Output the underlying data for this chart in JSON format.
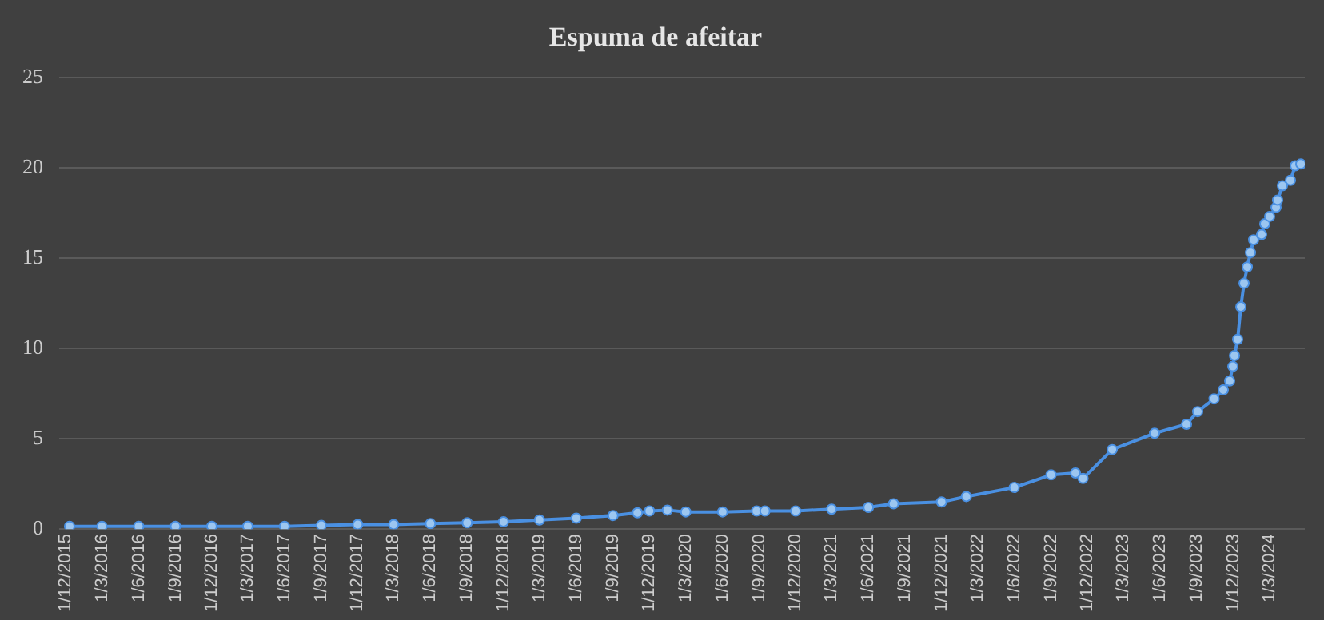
{
  "chart_data": {
    "type": "line",
    "title": "Espuma de afeitar",
    "x": [
      "2015-12-11",
      "2016-03-01",
      "2016-06-01",
      "2016-09-01",
      "2016-12-01",
      "2017-03-01",
      "2017-06-01",
      "2017-09-01",
      "2017-12-01",
      "2018-03-01",
      "2018-06-01",
      "2018-09-01",
      "2018-12-01",
      "2019-03-01",
      "2019-06-01",
      "2019-09-01",
      "2019-11-01",
      "2019-12-01",
      "2020-01-15",
      "2020-03-01",
      "2020-06-01",
      "2020-08-25",
      "2020-09-05",
      "2020-09-15",
      "2020-12-01",
      "2021-03-01",
      "2021-06-01",
      "2021-08-03",
      "2021-12-01",
      "2022-02-01",
      "2022-06-01",
      "2022-09-01",
      "2022-11-01",
      "2022-11-20",
      "2023-02-01",
      "2023-05-18",
      "2023-08-06",
      "2023-09-03",
      "2023-10-14",
      "2023-11-06",
      "2023-11-22",
      "2023-11-30",
      "2023-12-04",
      "2023-12-12",
      "2023-12-20",
      "2023-12-28",
      "2024-01-05",
      "2024-01-13",
      "2024-01-21",
      "2024-02-10",
      "2024-02-18",
      "2024-03-01",
      "2024-03-17",
      "2024-03-21",
      "2024-04-02",
      "2024-04-22",
      "2024-05-04",
      "2024-05-18"
    ],
    "series": [
      {
        "color": "#4a90e2",
        "values": [
          0.15,
          0.15,
          0.15,
          0.15,
          0.15,
          0.15,
          0.15,
          0.2,
          0.25,
          0.25,
          0.3,
          0.35,
          0.4,
          0.5,
          0.6,
          0.75,
          0.9,
          1.0,
          1.05,
          0.95,
          0.95,
          1.0,
          null,
          1.0,
          1.0,
          1.1,
          1.2,
          1.4,
          1.5,
          1.8,
          2.3,
          3.0,
          3.1,
          2.8,
          4.4,
          5.3,
          5.8,
          6.5,
          7.2,
          7.7,
          8.2,
          9.0,
          9.6,
          10.5,
          12.3,
          13.6,
          14.5,
          15.3,
          16.0,
          16.3,
          16.9,
          17.3,
          17.8,
          18.2,
          19.0,
          19.3,
          20.1,
          20.2
        ]
      }
    ],
    "xlim": [
      "2015-11-15",
      "2024-05-28"
    ],
    "xticks": [
      {
        "value": "2015-12-01",
        "label": "1/12/2015"
      },
      {
        "value": "2016-03-01",
        "label": "1/3/2016"
      },
      {
        "value": "2016-06-01",
        "label": "1/6/2016"
      },
      {
        "value": "2016-09-01",
        "label": "1/9/2016"
      },
      {
        "value": "2016-12-01",
        "label": "1/12/2016"
      },
      {
        "value": "2017-03-01",
        "label": "1/3/2017"
      },
      {
        "value": "2017-06-01",
        "label": "1/6/2017"
      },
      {
        "value": "2017-09-01",
        "label": "1/9/2017"
      },
      {
        "value": "2017-12-01",
        "label": "1/12/2017"
      },
      {
        "value": "2018-03-01",
        "label": "1/3/2018"
      },
      {
        "value": "2018-06-01",
        "label": "1/6/2018"
      },
      {
        "value": "2018-09-01",
        "label": "1/9/2018"
      },
      {
        "value": "2018-12-01",
        "label": "1/12/2018"
      },
      {
        "value": "2019-03-01",
        "label": "1/3/2019"
      },
      {
        "value": "2019-06-01",
        "label": "1/6/2019"
      },
      {
        "value": "2019-09-01",
        "label": "1/9/2019"
      },
      {
        "value": "2019-12-01",
        "label": "1/12/2019"
      },
      {
        "value": "2020-03-01",
        "label": "1/3/2020"
      },
      {
        "value": "2020-06-01",
        "label": "1/6/2020"
      },
      {
        "value": "2020-09-01",
        "label": "1/9/2020"
      },
      {
        "value": "2020-12-01",
        "label": "1/12/2020"
      },
      {
        "value": "2021-03-01",
        "label": "1/3/2021"
      },
      {
        "value": "2021-06-01",
        "label": "1/6/2021"
      },
      {
        "value": "2021-09-01",
        "label": "1/9/2021"
      },
      {
        "value": "2021-12-01",
        "label": "1/12/2021"
      },
      {
        "value": "2022-03-01",
        "label": "1/3/2022"
      },
      {
        "value": "2022-06-01",
        "label": "1/6/2022"
      },
      {
        "value": "2022-09-01",
        "label": "1/9/2022"
      },
      {
        "value": "2022-12-01",
        "label": "1/12/2022"
      },
      {
        "value": "2023-03-01",
        "label": "1/3/2023"
      },
      {
        "value": "2023-06-01",
        "label": "1/6/2023"
      },
      {
        "value": "2023-09-01",
        "label": "1/9/2023"
      },
      {
        "value": "2023-12-01",
        "label": "1/12/2023"
      },
      {
        "value": "2024-03-01",
        "label": "1/3/2024"
      }
    ],
    "ylim": [
      0,
      25
    ],
    "yticks": [
      0,
      5,
      10,
      15,
      20,
      25
    ],
    "grid": "y",
    "marker": "circle",
    "line_style": "solid"
  }
}
